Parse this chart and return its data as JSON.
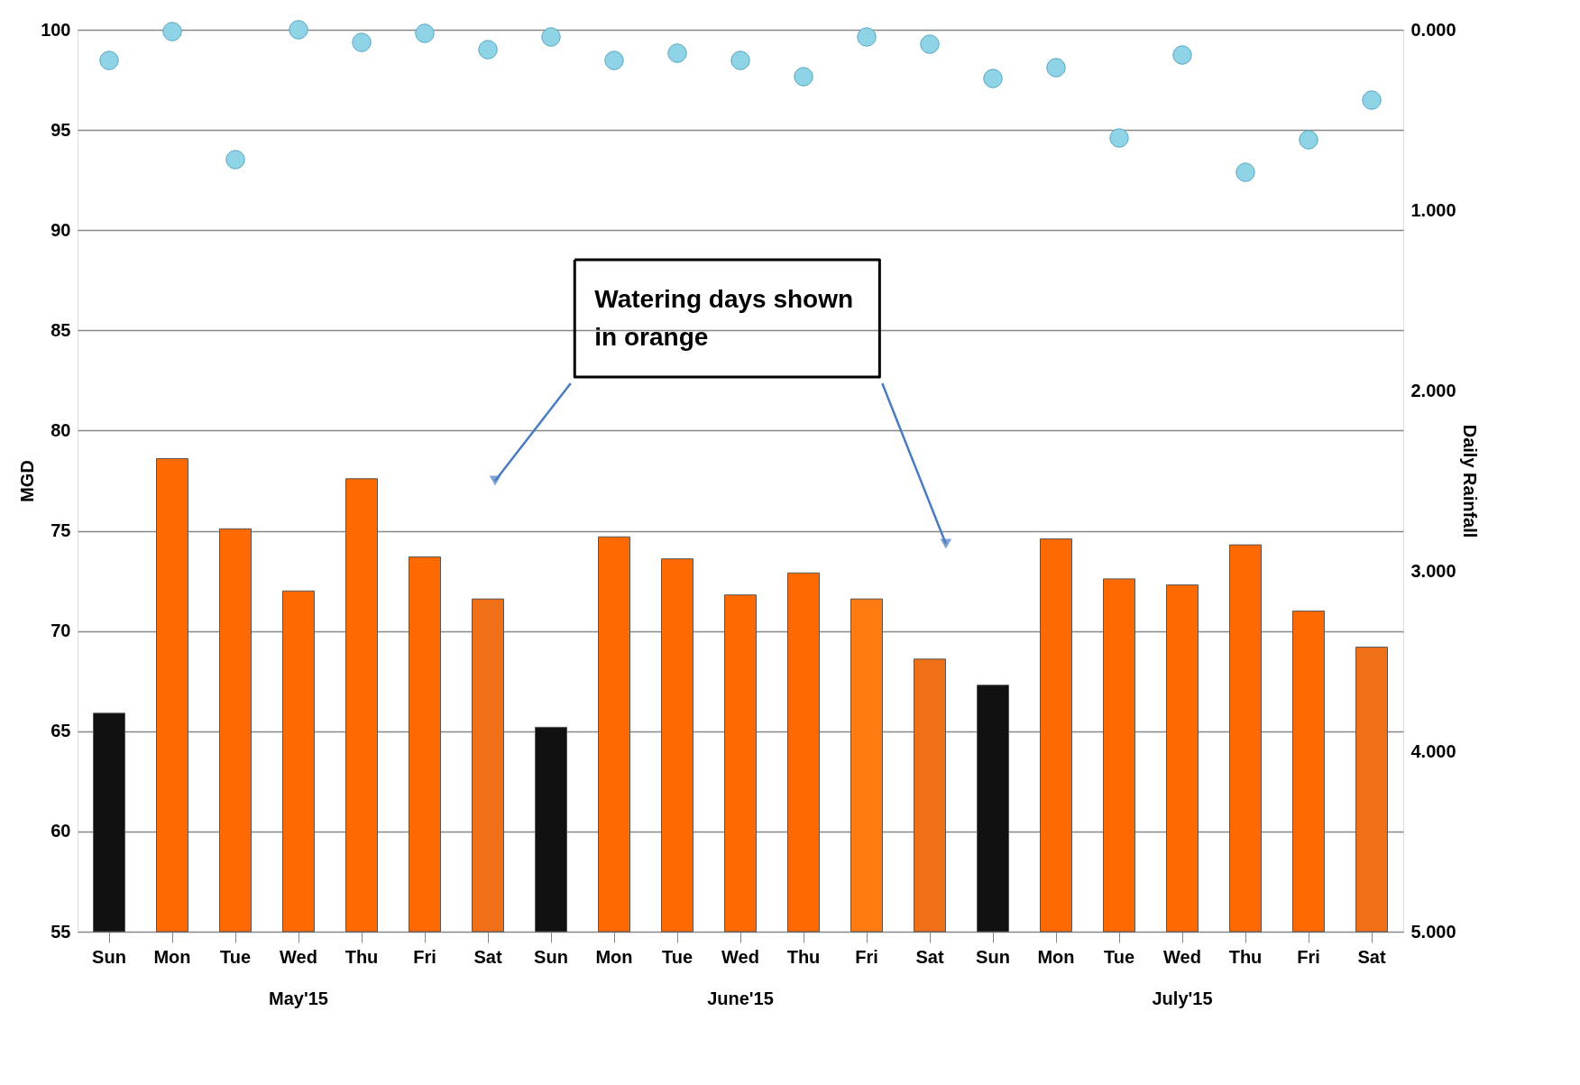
{
  "chart_data": {
    "type": "bar",
    "ylabel": "MGD",
    "y2label": "Daily Rainfall",
    "categories": [
      "Sun",
      "Mon",
      "Tue",
      "Wed",
      "Thu",
      "Fri",
      "Sat",
      "Sun",
      "Mon",
      "Tue",
      "Wed",
      "Thu",
      "Fri",
      "Sat",
      "Sun",
      "Mon",
      "Tue",
      "Wed",
      "Thu",
      "Fri",
      "Sat"
    ],
    "series": [
      {
        "colors": [
          "#111111",
          "#ff6a00",
          "#ff6a00",
          "#ff6a00",
          "#ff6a00",
          "#ff6a00",
          "#f07018",
          "#111111",
          "#ff6a00",
          "#ff6a00",
          "#ff6a00",
          "#ff6a00",
          "#ff7a10",
          "#f07018",
          "#111111",
          "#ff6a00",
          "#ff6a00",
          "#ff6a00",
          "#ff6a00",
          "#ff6a00",
          "#f07018"
        ],
        "values": [
          65.9,
          78.6,
          75.1,
          72.0,
          77.6,
          73.7,
          71.6,
          65.2,
          74.7,
          73.6,
          71.8,
          72.9,
          71.6,
          68.6,
          67.3,
          74.6,
          72.6,
          72.3,
          74.3,
          71.0,
          69.2
        ]
      },
      {
        "type": "scatter",
        "axis": "y2",
        "color": "#8fd3e6",
        "values": [
          0.17,
          0.01,
          0.72,
          0.0,
          0.07,
          0.02,
          0.11,
          0.04,
          0.17,
          0.13,
          0.17,
          0.26,
          0.04,
          0.08,
          0.27,
          0.21,
          0.6,
          0.14,
          0.79,
          0.61,
          0.39
        ]
      }
    ],
    "ylim": [
      55,
      100
    ],
    "yticks": [
      55,
      60,
      65,
      70,
      75,
      80,
      85,
      90,
      95,
      100
    ],
    "y2lim": [
      5,
      0
    ],
    "y2ticks": [
      {
        "value": 0,
        "label": "0.000"
      },
      {
        "value": 1,
        "label": "1.000"
      },
      {
        "value": 2,
        "label": "2.000"
      },
      {
        "value": 3,
        "label": "3.000"
      },
      {
        "value": 4,
        "label": "4.000"
      },
      {
        "value": 5,
        "label": "5.000"
      }
    ],
    "grid": "y",
    "marker": "circle",
    "annotations": [
      "Watering days shown in orange",
      "May'15",
      "June'15",
      "July'15"
    ]
  }
}
